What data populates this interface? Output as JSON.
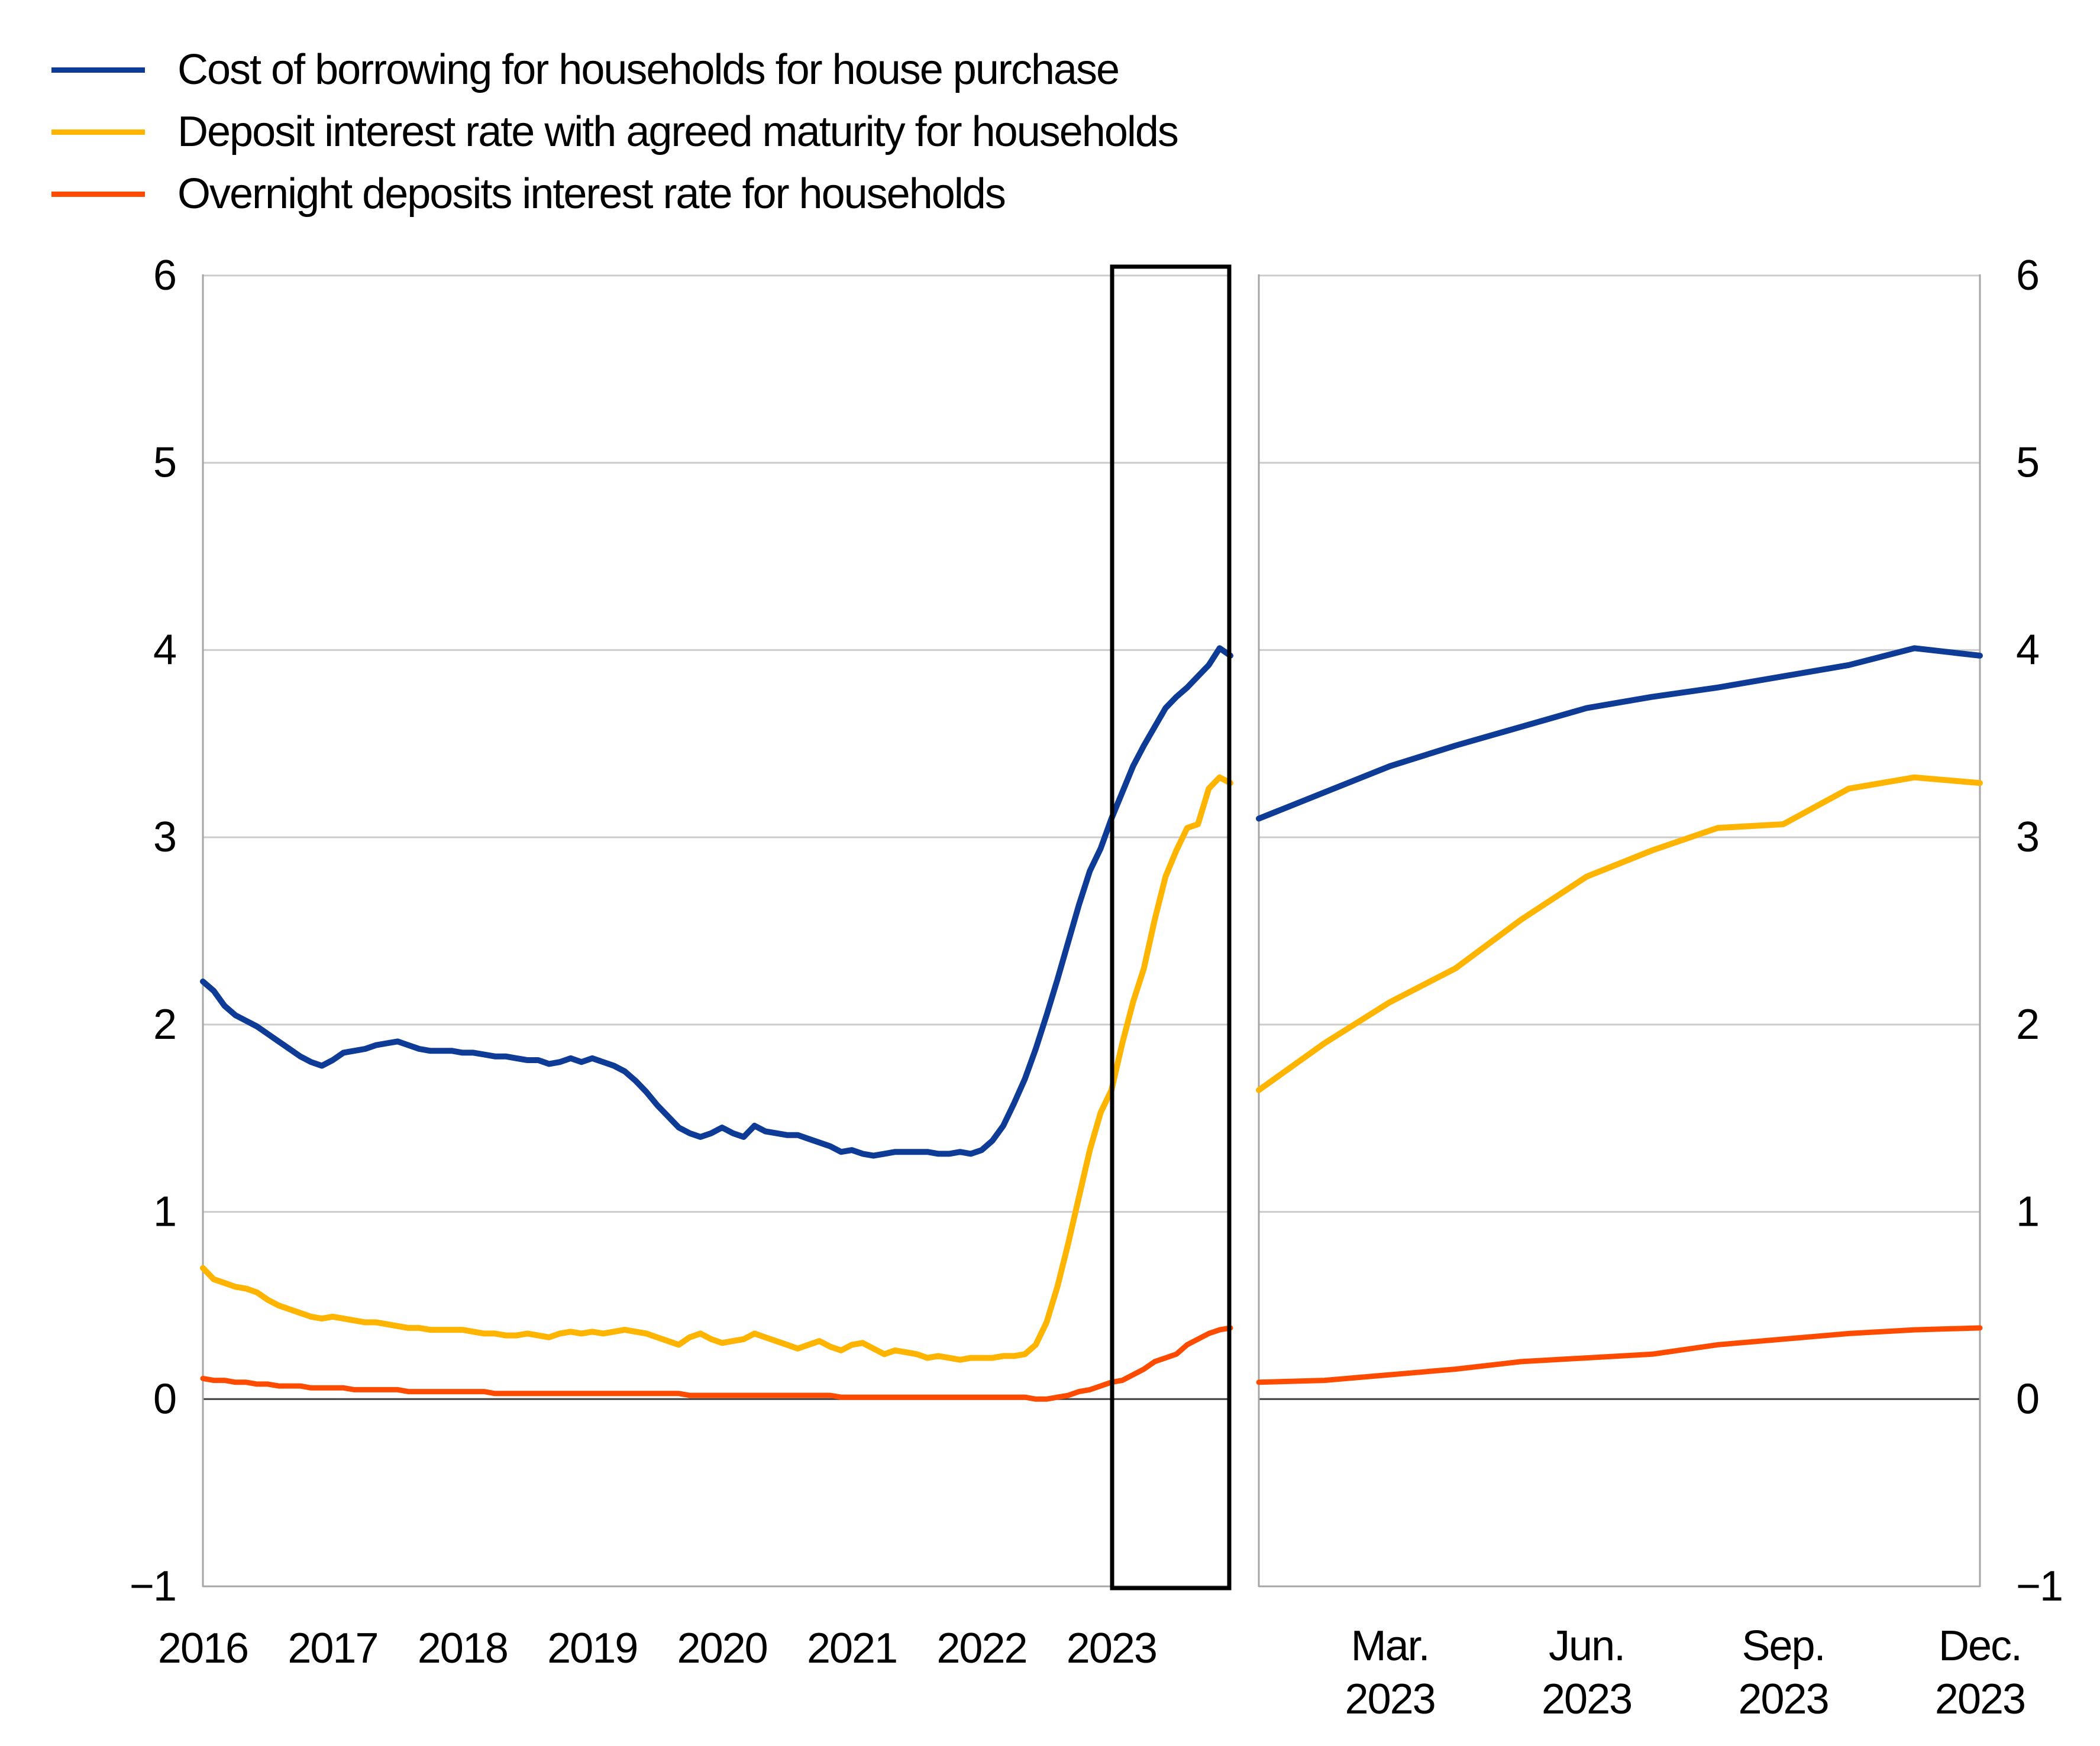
{
  "page": {
    "background": "#ffffff"
  },
  "legend": {
    "items": [
      {
        "label": "Cost of borrowing for households for house purchase",
        "color": "#0d3b96"
      },
      {
        "label": "Deposit interest rate with agreed maturity for households",
        "color": "#ffb400"
      },
      {
        "label": "Overnight deposits interest rate for households",
        "color": "#ff4b00"
      }
    ]
  },
  "chart_data": {
    "type": "line",
    "frequency": "monthly",
    "x_start": "2016-01",
    "x_end": "2023-12",
    "ylim": [
      -1,
      6
    ],
    "grid": "horizontal",
    "zero_line": true,
    "y_ticks": [
      {
        "label": "6",
        "value": 6
      },
      {
        "label": "5",
        "value": 5
      },
      {
        "label": "4",
        "value": 4
      },
      {
        "label": "3",
        "value": 3
      },
      {
        "label": "2",
        "value": 2
      },
      {
        "label": "1",
        "value": 1
      },
      {
        "label": "0",
        "value": 0
      },
      {
        "label": "−1",
        "value": -1
      }
    ],
    "left_panel": {
      "x_tick_labels": [
        {
          "label": "2016",
          "year": 2016
        },
        {
          "label": "2017",
          "year": 2017
        },
        {
          "label": "2018",
          "year": 2018
        },
        {
          "label": "2019",
          "year": 2019
        },
        {
          "label": "2020",
          "year": 2020
        },
        {
          "label": "2021",
          "year": 2021
        },
        {
          "label": "2022",
          "year": 2022
        },
        {
          "label": "2023",
          "year": 2023
        }
      ]
    },
    "right_panel": {
      "shows": "Jan 2023 to Dec 2023 (last 12 months of each series)",
      "x_ticks": [
        {
          "line1": "Mar.",
          "line2": "2023",
          "month_index": 2
        },
        {
          "line1": "Jun.",
          "line2": "2023",
          "month_index": 5
        },
        {
          "line1": "Sep.",
          "line2": "2023",
          "month_index": 8
        },
        {
          "line1": "Dec.",
          "line2": "2023",
          "month_index": 11
        }
      ]
    },
    "highlight_box": {
      "from": "2023-01",
      "to": "2023-12",
      "color": "#000000"
    },
    "series": [
      {
        "name": "Cost of borrowing for households for house purchase",
        "color": "#0d3b96",
        "values": [
          2.23,
          2.18,
          2.1,
          2.05,
          2.02,
          1.99,
          1.95,
          1.91,
          1.87,
          1.83,
          1.8,
          1.78,
          1.81,
          1.85,
          1.86,
          1.87,
          1.89,
          1.9,
          1.91,
          1.89,
          1.87,
          1.86,
          1.86,
          1.86,
          1.85,
          1.85,
          1.84,
          1.83,
          1.83,
          1.82,
          1.81,
          1.81,
          1.79,
          1.8,
          1.82,
          1.8,
          1.82,
          1.8,
          1.78,
          1.75,
          1.7,
          1.64,
          1.57,
          1.51,
          1.45,
          1.42,
          1.4,
          1.42,
          1.45,
          1.42,
          1.4,
          1.46,
          1.43,
          1.42,
          1.41,
          1.41,
          1.39,
          1.37,
          1.35,
          1.32,
          1.33,
          1.31,
          1.3,
          1.31,
          1.32,
          1.32,
          1.32,
          1.32,
          1.31,
          1.31,
          1.32,
          1.31,
          1.33,
          1.38,
          1.46,
          1.58,
          1.71,
          1.87,
          2.05,
          2.24,
          2.44,
          2.64,
          2.82,
          2.94,
          3.1,
          3.24,
          3.38,
          3.49,
          3.59,
          3.69,
          3.75,
          3.8,
          3.86,
          3.92,
          4.01,
          3.97
        ]
      },
      {
        "name": "Deposit interest rate with agreed maturity for households",
        "color": "#ffb400",
        "values": [
          0.7,
          0.64,
          0.62,
          0.6,
          0.59,
          0.57,
          0.53,
          0.5,
          0.48,
          0.46,
          0.44,
          0.43,
          0.44,
          0.43,
          0.42,
          0.41,
          0.41,
          0.4,
          0.39,
          0.38,
          0.38,
          0.37,
          0.37,
          0.37,
          0.37,
          0.36,
          0.35,
          0.35,
          0.34,
          0.34,
          0.35,
          0.34,
          0.33,
          0.35,
          0.36,
          0.35,
          0.36,
          0.35,
          0.36,
          0.37,
          0.36,
          0.35,
          0.33,
          0.31,
          0.29,
          0.33,
          0.35,
          0.32,
          0.3,
          0.31,
          0.32,
          0.35,
          0.33,
          0.31,
          0.29,
          0.27,
          0.29,
          0.31,
          0.28,
          0.26,
          0.29,
          0.3,
          0.27,
          0.24,
          0.26,
          0.25,
          0.24,
          0.22,
          0.23,
          0.22,
          0.21,
          0.22,
          0.22,
          0.22,
          0.23,
          0.23,
          0.24,
          0.29,
          0.41,
          0.6,
          0.83,
          1.08,
          1.33,
          1.53,
          1.65,
          1.9,
          2.12,
          2.3,
          2.56,
          2.79,
          2.93,
          3.05,
          3.07,
          3.26,
          3.32,
          3.29
        ]
      },
      {
        "name": "Overnight deposits interest rate for households",
        "color": "#ff4b00",
        "values": [
          0.11,
          0.1,
          0.1,
          0.09,
          0.09,
          0.08,
          0.08,
          0.07,
          0.07,
          0.07,
          0.06,
          0.06,
          0.06,
          0.06,
          0.05,
          0.05,
          0.05,
          0.05,
          0.05,
          0.04,
          0.04,
          0.04,
          0.04,
          0.04,
          0.04,
          0.04,
          0.04,
          0.03,
          0.03,
          0.03,
          0.03,
          0.03,
          0.03,
          0.03,
          0.03,
          0.03,
          0.03,
          0.03,
          0.03,
          0.03,
          0.03,
          0.03,
          0.03,
          0.03,
          0.03,
          0.02,
          0.02,
          0.02,
          0.02,
          0.02,
          0.02,
          0.02,
          0.02,
          0.02,
          0.02,
          0.02,
          0.02,
          0.02,
          0.02,
          0.01,
          0.01,
          0.01,
          0.01,
          0.01,
          0.01,
          0.01,
          0.01,
          0.01,
          0.01,
          0.01,
          0.01,
          0.01,
          0.01,
          0.01,
          0.01,
          0.01,
          0.01,
          0.0,
          0.0,
          0.01,
          0.02,
          0.04,
          0.05,
          0.07,
          0.09,
          0.1,
          0.13,
          0.16,
          0.2,
          0.22,
          0.24,
          0.29,
          0.32,
          0.35,
          0.37,
          0.38
        ]
      }
    ]
  }
}
